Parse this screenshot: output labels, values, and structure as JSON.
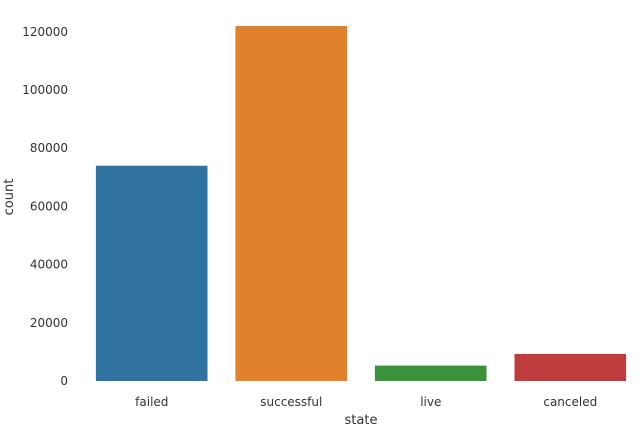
{
  "chart_data": {
    "type": "bar",
    "categories": [
      "failed",
      "successful",
      "live",
      "canceled"
    ],
    "values": [
      74000,
      122000,
      5300,
      9300
    ],
    "colors": [
      "#3274a1",
      "#e1812c",
      "#3a923a",
      "#c03d3e"
    ],
    "xlabel": "state",
    "ylabel": "count",
    "ylim": [
      0,
      122000
    ],
    "yticks": [
      0,
      20000,
      40000,
      60000,
      80000,
      100000,
      120000
    ],
    "grid": false,
    "legend": "none"
  }
}
